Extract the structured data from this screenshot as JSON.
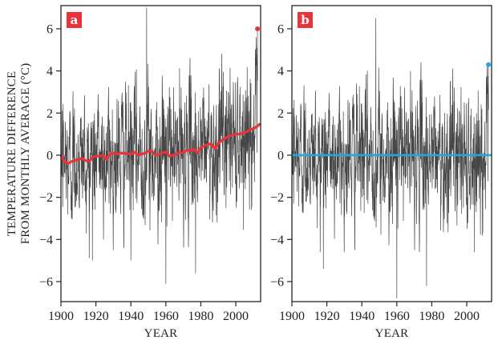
{
  "chart_data": [
    {
      "type": "line",
      "panel_label": "a",
      "title": "",
      "xlabel": "YEAR",
      "ylabel": [
        "TEMPERATURE DIFFERENCE",
        "FROM MONTHLY AVERAGE (°C)"
      ],
      "xlim": [
        1900,
        2014
      ],
      "ylim": [
        -7,
        7
      ],
      "xticks": [
        "1900",
        "1920",
        "1940",
        "1960",
        "1980",
        "2000"
      ],
      "yticks": [
        "−6",
        "−4",
        "−2",
        "0",
        "2",
        "4",
        "6"
      ],
      "grid": false,
      "series": [
        {
          "name": "monthly temperature difference",
          "color": "#111111",
          "description_values": "dense monthly series, approx range -6.1 to 7.0",
          "notable_points": [
            {
              "x": 1949,
              "y": 7.0
            },
            {
              "x": 1960,
              "y": -6.1
            },
            {
              "x": 1977,
              "y": -5.6
            },
            {
              "x": 1918,
              "y": -5.0
            },
            {
              "x": 1940,
              "y": -5.0
            }
          ]
        },
        {
          "name": "trend",
          "color": "#e8333a",
          "x": [
            1900,
            1902,
            1904,
            1906,
            1908,
            1910,
            1912,
            1914,
            1916,
            1918,
            1920,
            1922,
            1924,
            1926,
            1928,
            1930,
            1932,
            1934,
            1936,
            1938,
            1940,
            1942,
            1944,
            1946,
            1948,
            1950,
            1952,
            1954,
            1956,
            1958,
            1960,
            1962,
            1964,
            1966,
            1968,
            1970,
            1972,
            1974,
            1976,
            1978,
            1980,
            1982,
            1984,
            1986,
            1988,
            1990,
            1992,
            1994,
            1996,
            1998,
            2000,
            2002,
            2004,
            2006,
            2008,
            2010,
            2012,
            2014
          ],
          "y": [
            0.0,
            -0.3,
            -0.4,
            -0.3,
            -0.25,
            -0.2,
            -0.15,
            -0.25,
            -0.3,
            -0.1,
            -0.05,
            -0.05,
            0.0,
            -0.2,
            0.05,
            0.1,
            0.05,
            0.1,
            0.1,
            0.05,
            0.05,
            0.15,
            0.0,
            0.05,
            0.1,
            0.2,
            0.2,
            0.0,
            0.05,
            0.1,
            0.15,
            -0.05,
            0.0,
            0.05,
            0.15,
            0.1,
            0.25,
            0.2,
            0.3,
            0.1,
            0.35,
            0.45,
            0.5,
            0.55,
            0.3,
            0.55,
            0.7,
            0.8,
            0.9,
            0.95,
            1.0,
            1.0,
            1.05,
            1.1,
            1.2,
            1.25,
            1.35,
            1.5
          ]
        },
        {
          "name": "last month",
          "color": "#e8333a",
          "x": [
            2012.4
          ],
          "y": [
            6.0
          ]
        }
      ]
    },
    {
      "type": "line",
      "panel_label": "b",
      "title": "",
      "xlabel": "YEAR",
      "ylabel": "",
      "xlim": [
        1900,
        2014
      ],
      "ylim": [
        -7,
        7
      ],
      "xticks": [
        "1900",
        "1920",
        "1940",
        "1960",
        "1980",
        "2000"
      ],
      "yticks": [
        "−6",
        "−4",
        "−2",
        "0",
        "2",
        "4",
        "6"
      ],
      "grid": false,
      "series": [
        {
          "name": "detrended monthly temperature difference",
          "color": "#111111",
          "description_values": "dense monthly series, approx range -6.8 to 6.5",
          "notable_points": [
            {
              "x": 1948,
              "y": 6.5
            },
            {
              "x": 1960,
              "y": -6.8
            },
            {
              "x": 1977,
              "y": -6.2
            },
            {
              "x": 1918,
              "y": -5.4
            }
          ]
        },
        {
          "name": "trend",
          "color": "#1ea7e1",
          "x": [
            1900,
            2014
          ],
          "y": [
            0.0,
            0.0
          ]
        },
        {
          "name": "last month",
          "color": "#1ea7e1",
          "x": [
            2012.4
          ],
          "y": [
            4.3
          ]
        }
      ]
    }
  ],
  "colors": {
    "panel_a_accent": "#e8333a",
    "panel_b_label": "#e8333a",
    "panel_b_accent": "#1ea7e1",
    "data": "#111111"
  }
}
